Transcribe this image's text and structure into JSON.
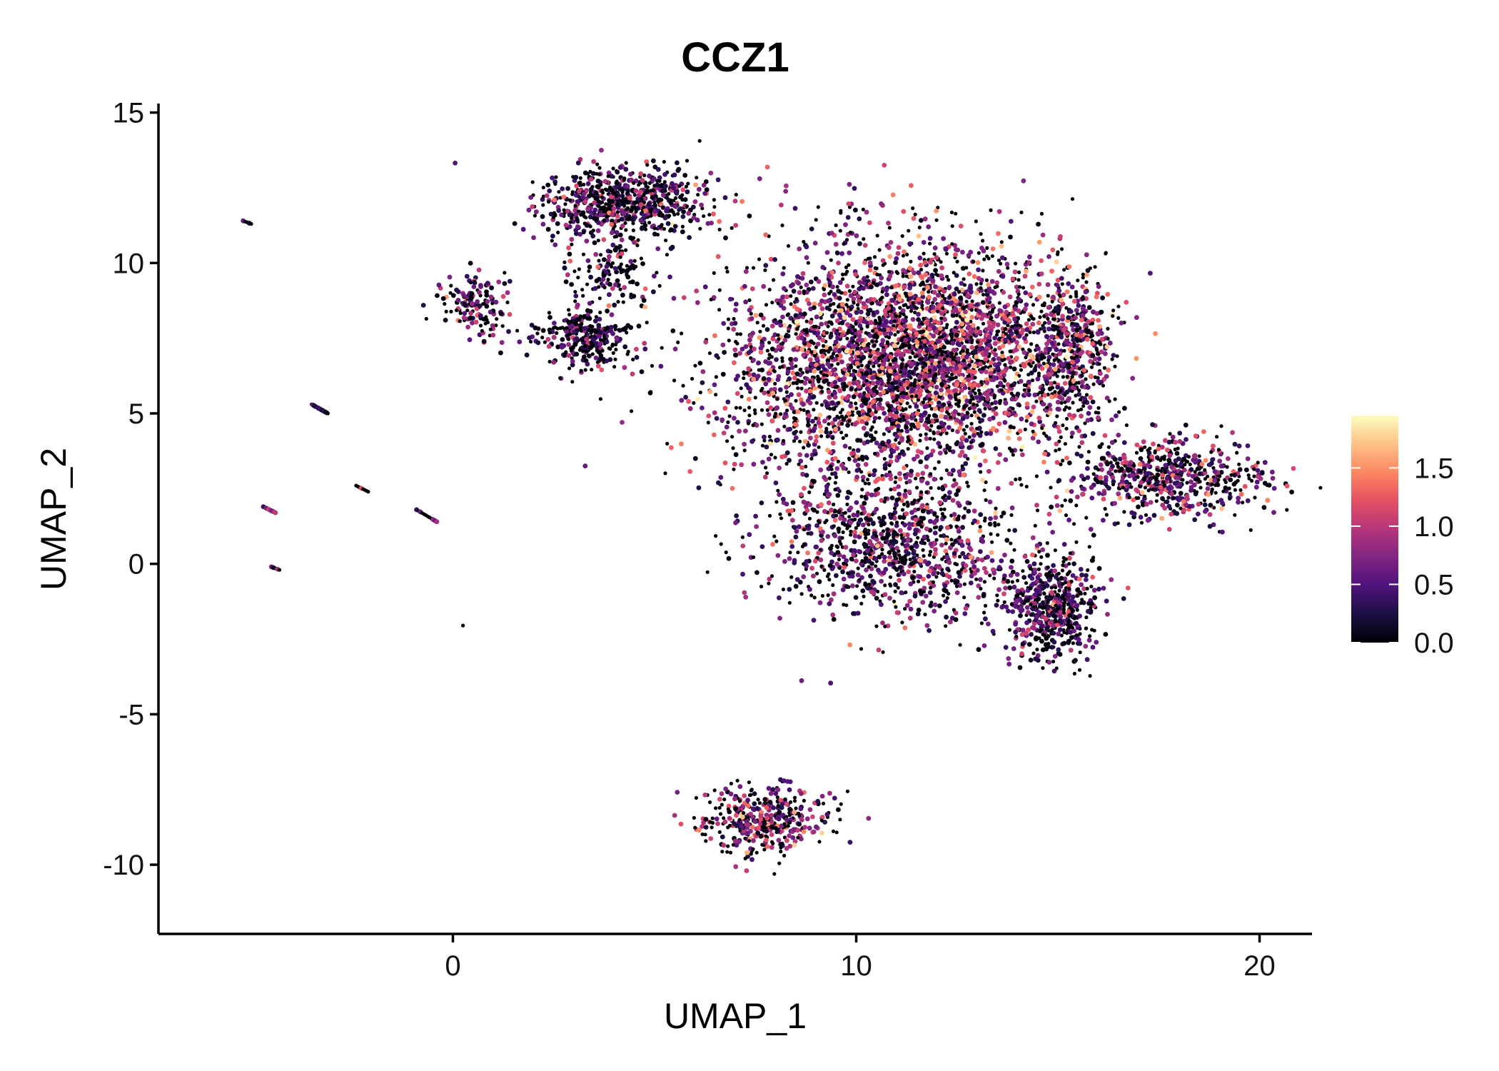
{
  "chart_data": {
    "type": "scatter",
    "title": "CCZ1",
    "xlabel": "UMAP_1",
    "ylabel": "UMAP_2",
    "xlim": [
      -7.3,
      21.3
    ],
    "ylim": [
      -12.3,
      15.3
    ],
    "x_ticks": [
      0,
      10,
      20
    ],
    "y_ticks": [
      15,
      10,
      5,
      0,
      -5,
      -10
    ],
    "x_tick_labels": [
      "0",
      "10",
      "20"
    ],
    "y_tick_labels": [
      "15",
      "10",
      "5",
      "0",
      "-5",
      "-10"
    ],
    "grid": false,
    "color_scale": {
      "name": "magma",
      "range": [
        0,
        1.95
      ],
      "ticks": [
        0.0,
        0.5,
        1.0,
        1.5
      ],
      "tick_labels": [
        "0.0",
        "0.5",
        "1.0",
        "1.5"
      ],
      "stops": [
        "#000004",
        "#1c1044",
        "#4f127b",
        "#812581",
        "#b5367a",
        "#e55064",
        "#fb8761",
        "#fec287",
        "#fcfdbf"
      ]
    },
    "clusters": [
      {
        "name": "top-left-cluster",
        "cx": 4.3,
        "cy": 12.0,
        "sx": 1.1,
        "sy": 0.6,
        "n": 700,
        "expr": 0.45
      },
      {
        "name": "top-left-tail",
        "cx": 3.9,
        "cy": 9.8,
        "sx": 0.5,
        "sy": 0.6,
        "n": 120,
        "expr": 0.4
      },
      {
        "name": "mid-left-cluster",
        "cx": 3.3,
        "cy": 7.5,
        "sx": 0.55,
        "sy": 0.5,
        "n": 300,
        "expr": 0.35
      },
      {
        "name": "small-left-cluster",
        "cx": 0.6,
        "cy": 8.6,
        "sx": 0.45,
        "sy": 0.6,
        "n": 150,
        "expr": 0.5
      },
      {
        "name": "central-mass",
        "cx": 10.5,
        "cy": 6.5,
        "sx": 2.0,
        "sy": 2.2,
        "n": 2600,
        "expr": 0.75
      },
      {
        "name": "central-upper-right",
        "cx": 12.5,
        "cy": 7.2,
        "sx": 1.3,
        "sy": 1.6,
        "n": 1200,
        "expr": 0.9
      },
      {
        "name": "right-arm",
        "cx": 15.3,
        "cy": 7.0,
        "sx": 0.55,
        "sy": 1.4,
        "n": 500,
        "expr": 0.75
      },
      {
        "name": "central-lower",
        "cx": 11.0,
        "cy": 0.5,
        "sx": 1.5,
        "sy": 1.2,
        "n": 900,
        "expr": 0.55
      },
      {
        "name": "bottom-right-cluster",
        "cx": 14.8,
        "cy": -1.5,
        "sx": 0.6,
        "sy": 0.9,
        "n": 550,
        "expr": 0.45
      },
      {
        "name": "far-right-cluster",
        "cx": 17.8,
        "cy": 2.8,
        "sx": 1.2,
        "sy": 0.7,
        "n": 600,
        "expr": 0.65
      },
      {
        "name": "bottom-cluster",
        "cx": 7.7,
        "cy": -8.5,
        "sx": 0.8,
        "sy": 0.6,
        "n": 400,
        "expr": 0.7
      }
    ],
    "outlier_segments": [
      {
        "x1": -5.2,
        "y1": 11.4,
        "x2": -5.0,
        "y2": 11.3,
        "n": 5
      },
      {
        "x1": -3.5,
        "y1": 5.3,
        "x2": -3.1,
        "y2": 5.0,
        "n": 14
      },
      {
        "x1": -4.7,
        "y1": 1.9,
        "x2": -4.4,
        "y2": 1.7,
        "n": 10
      },
      {
        "x1": -2.4,
        "y1": 2.6,
        "x2": -2.1,
        "y2": 2.4,
        "n": 8
      },
      {
        "x1": -0.9,
        "y1": 1.8,
        "x2": -0.4,
        "y2": 1.4,
        "n": 12
      },
      {
        "x1": -4.5,
        "y1": -0.1,
        "x2": -4.3,
        "y2": -0.2,
        "n": 5
      },
      {
        "x1": 0.25,
        "y1": -2.05,
        "x2": 0.25,
        "y2": -2.05,
        "n": 1
      }
    ]
  }
}
